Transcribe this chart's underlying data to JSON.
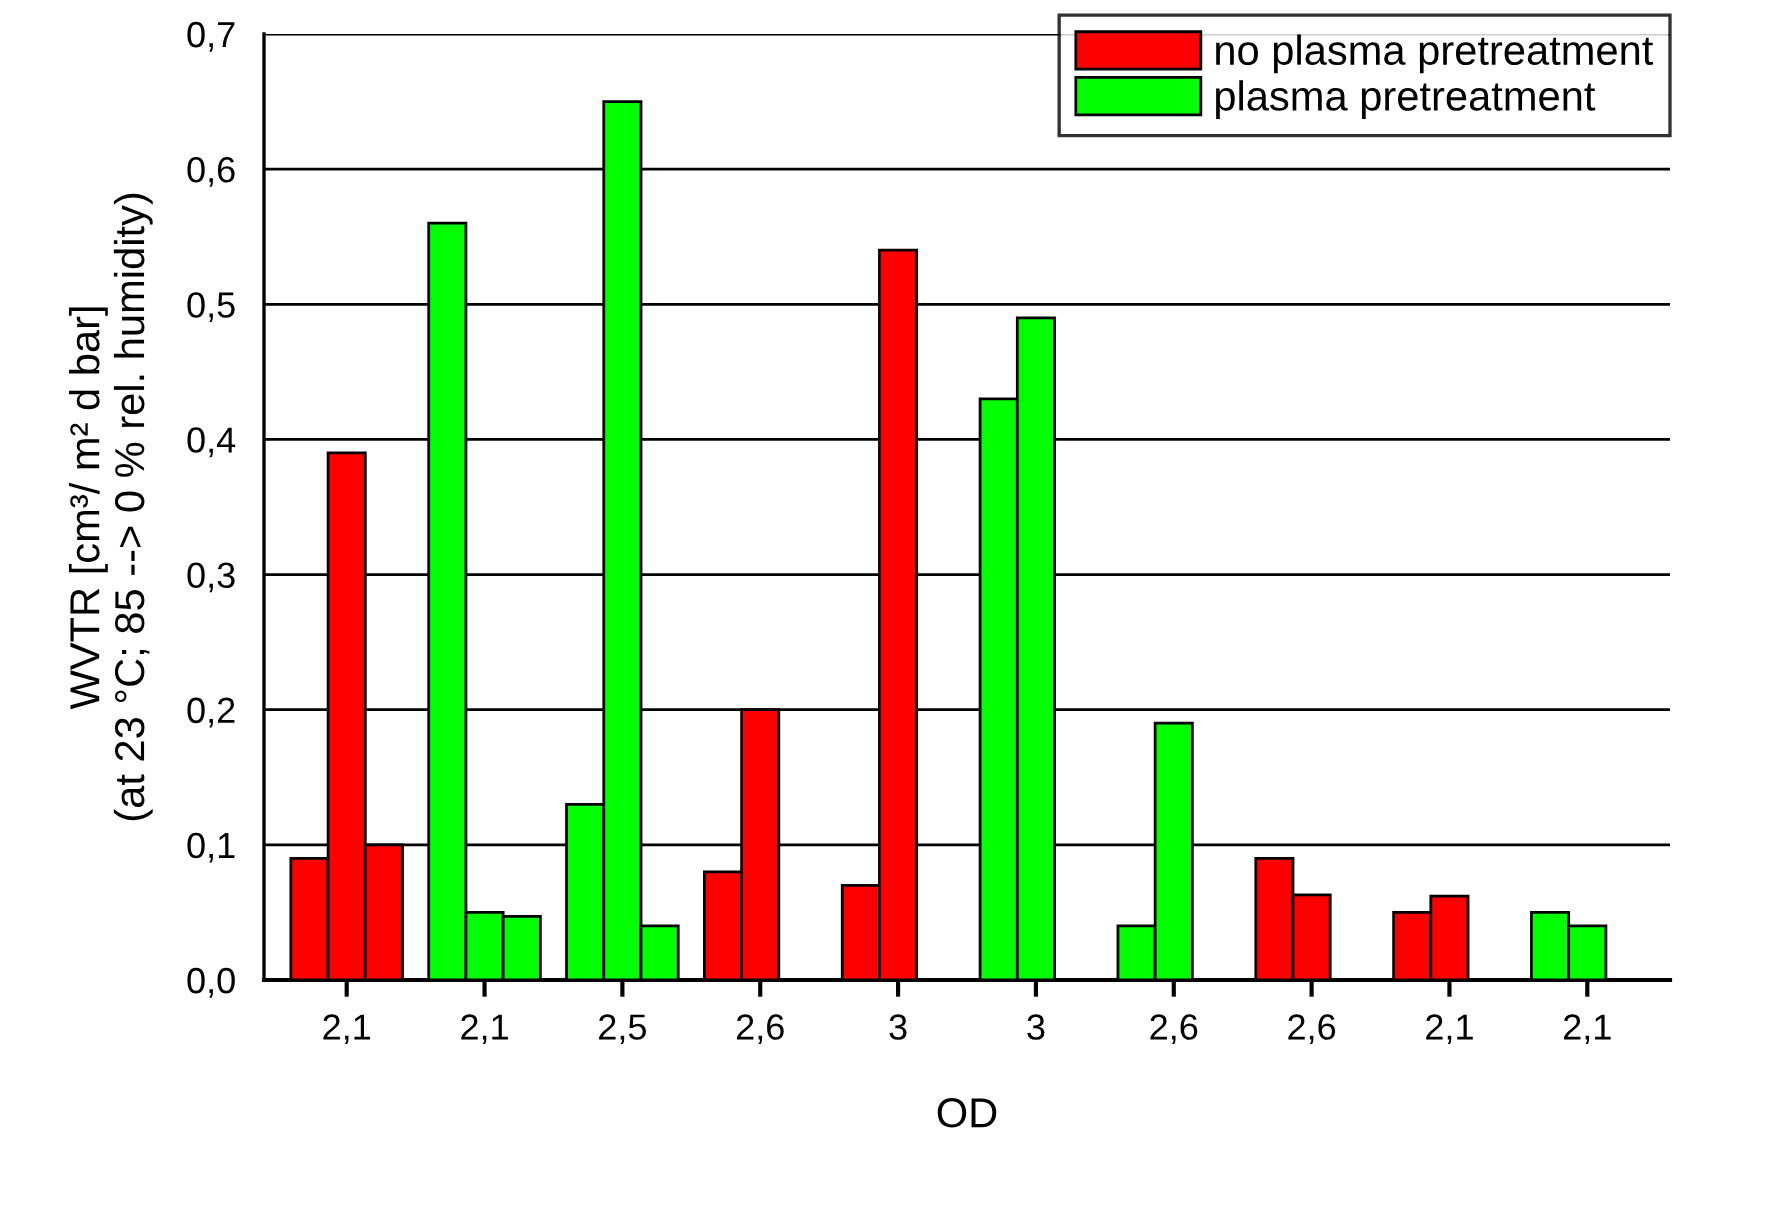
{
  "chart_data": {
    "type": "bar",
    "categories": [
      "2,1",
      "2,1",
      "2,5",
      "2,6",
      "3",
      "3",
      "2,6",
      "2,6",
      "2,1",
      "2,1"
    ],
    "xlabel": "OD",
    "ylabel": "WVTR [cm³/ m² d bar]\n(at 23 °C; 85 --> 0 % rel. humidity)",
    "series": [
      {
        "name": "no plasma pretreatment",
        "color": "#ff0000",
        "values": [
          0.09,
          null,
          null,
          0.08,
          0.07,
          null,
          null,
          0.09,
          0.05,
          null
        ]
      },
      {
        "color": "#ff0000",
        "values": [
          0.39,
          null,
          null,
          0.2,
          0.54,
          null,
          null,
          0.063,
          0.062,
          null
        ]
      },
      {
        "color": "#ff0000",
        "values": [
          0.1,
          null,
          null,
          null,
          null,
          null,
          null,
          null,
          null,
          null
        ]
      },
      {
        "name": "plasma pretreatment",
        "color": "#00ff00",
        "values": [
          null,
          0.56,
          0.13,
          null,
          null,
          0.43,
          0.04,
          null,
          null,
          0.05
        ]
      },
      {
        "color": "#00ff00",
        "values": [
          null,
          0.05,
          0.65,
          null,
          null,
          0.49,
          0.19,
          null,
          null,
          0.04
        ]
      },
      {
        "color": "#00ff00",
        "values": [
          null,
          0.047,
          0.04,
          null,
          null,
          null,
          null,
          null,
          null,
          null
        ]
      }
    ],
    "ylim": [
      0,
      0.7
    ],
    "yticks": [
      {
        "value": 0,
        "label": "0,0"
      },
      {
        "value": 0.1,
        "label": "0,1"
      },
      {
        "value": 0.2,
        "label": "0,2"
      },
      {
        "value": 0.3,
        "label": "0,3"
      },
      {
        "value": 0.4,
        "label": "0,4"
      },
      {
        "value": 0.5,
        "label": "0,5"
      },
      {
        "value": 0.6,
        "label": "0,6"
      },
      {
        "value": 0.7,
        "label": "0,7"
      }
    ],
    "grid": "y",
    "legend": "top right"
  }
}
